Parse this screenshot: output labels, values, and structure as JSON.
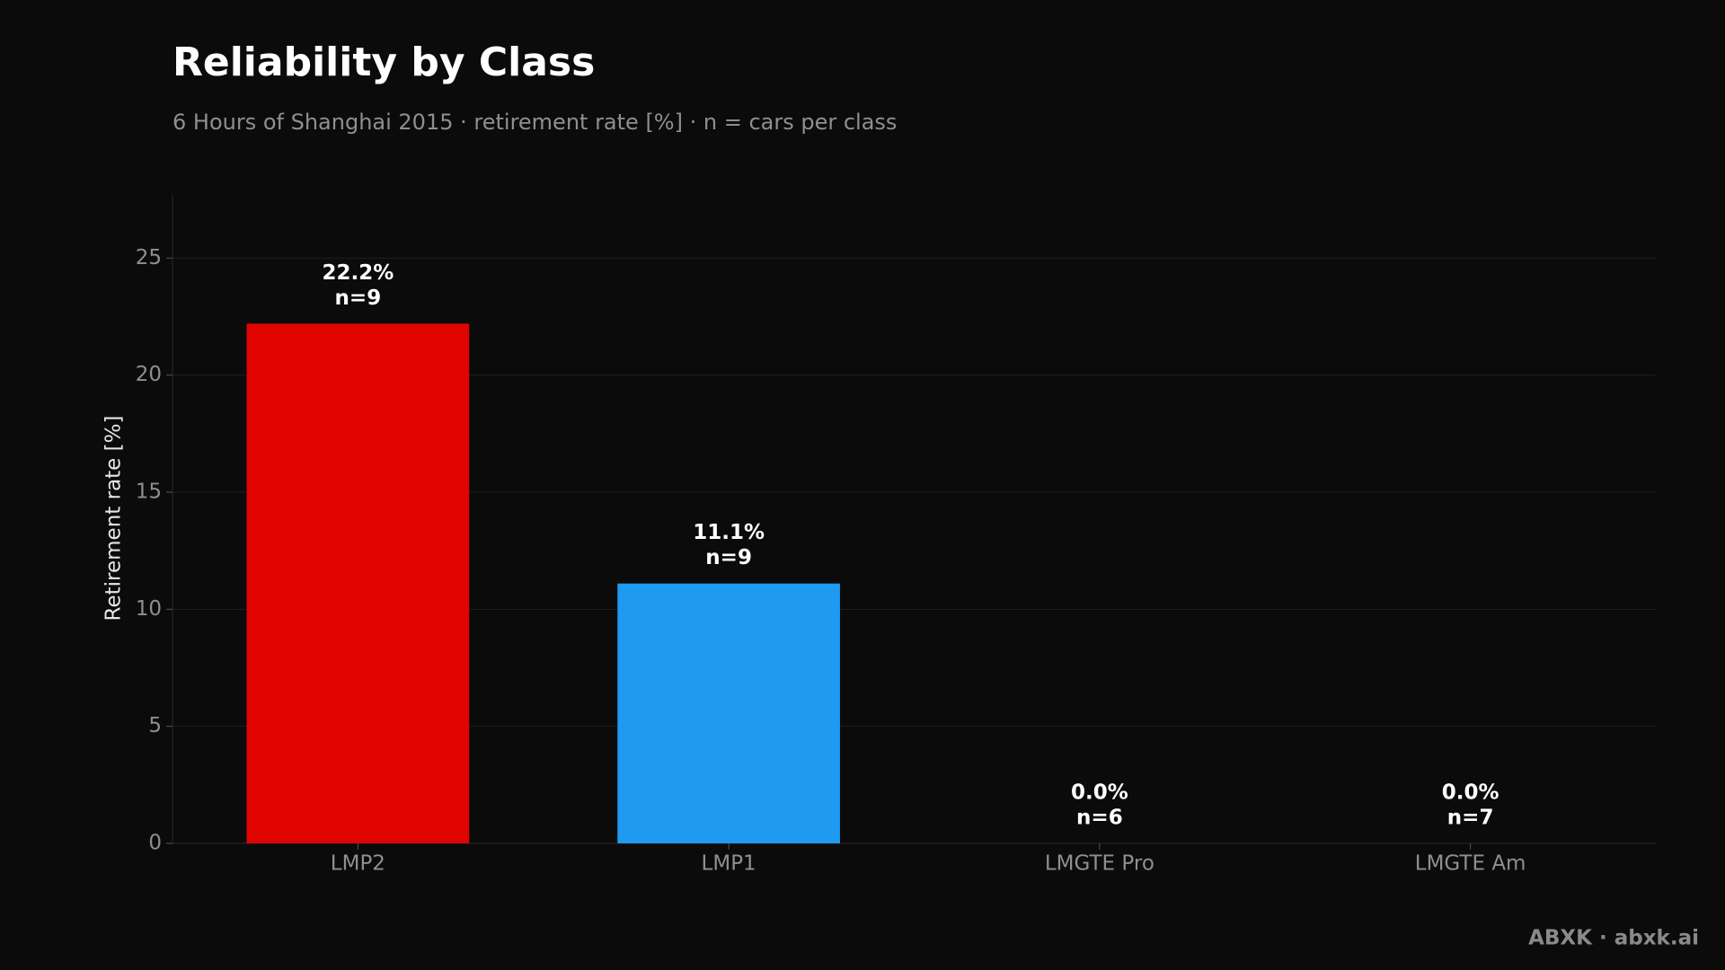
{
  "chart_data": {
    "type": "bar",
    "title": "Reliability by Class",
    "subtitle": "6 Hours of Shanghai 2015 · retirement rate [%] · n = cars per class",
    "y_label": "Retirement rate [%]",
    "categories": [
      "LMP2",
      "LMP1",
      "LMGTE Pro",
      "LMGTE Am"
    ],
    "values": [
      22.2,
      11.1,
      0,
      0
    ],
    "value_labels": [
      "22.2%",
      "11.1%",
      "0.0%",
      "0.0%"
    ],
    "n_labels": [
      "n=9",
      "n=9",
      "n=6",
      "n=7"
    ],
    "colors": [
      "#e00400",
      "#1e9bf0",
      "#8c8c8c",
      "#8c8c8c"
    ],
    "ylim": [
      0,
      27.7
    ],
    "yticks": [
      0,
      5,
      10,
      15,
      20,
      25
    ],
    "grid": true,
    "footer": "ABXK · abxk.ai"
  }
}
